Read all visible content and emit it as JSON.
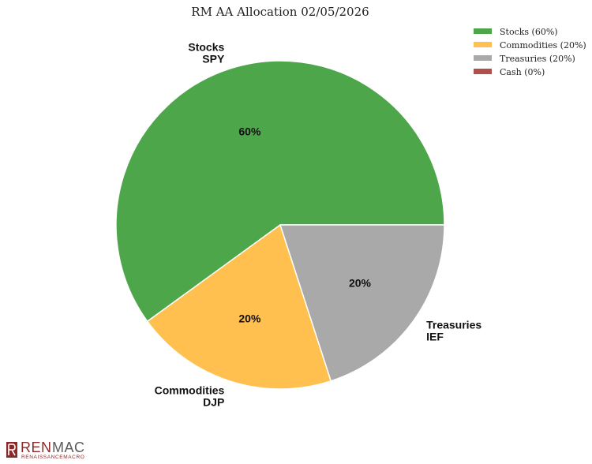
{
  "chart_data": {
    "type": "pie",
    "title": "RM AA Allocation 02/05/2026",
    "slices": [
      {
        "category": "Stocks",
        "ticker": "SPY",
        "value": 60,
        "pct_label": "60%",
        "legend": "Stocks (60%)",
        "color": "#4ea64b"
      },
      {
        "category": "Commodities",
        "ticker": "DJP",
        "value": 20,
        "pct_label": "20%",
        "legend": "Commodities (20%)",
        "color": "#ffc04f"
      },
      {
        "category": "Treasuries",
        "ticker": "IEF",
        "value": 20,
        "pct_label": "20%",
        "legend": "Treasuries (20%)",
        "color": "#a9a9a9"
      },
      {
        "category": "Cash",
        "ticker": "",
        "value": 0,
        "pct_label": "0%",
        "legend": "Cash (0%)",
        "color": "#b0504c"
      }
    ],
    "start_angle": "3 o'clock",
    "direction": "counterclockwise",
    "legend_position": "top-right"
  },
  "logo": {
    "ren": "REN",
    "mac": "MAC",
    "subtitle": "RENAISSANCEMACRO",
    "color": "#8b2a2a"
  }
}
